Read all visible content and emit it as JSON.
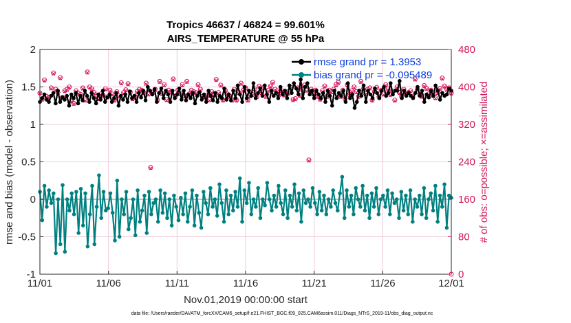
{
  "chart_data": {
    "type": "line",
    "title": "Tropics 46637 / 46824 = 99.601%",
    "subtitle": "AIRS_TEMPERATURE @ 55 hPa",
    "xlabel": "Nov.01,2019 00:00:00 start",
    "ylabel": "rmse and bias (model - observation)",
    "ylabel_right": "# of obs: o=possible; ×=assimilated",
    "footer": "data file: /Users/raeder/DAI/ATM_forcXX/CAM6_setup/f.e21.FHIST_BGC.f09_025.CAM6assim.011/Diags_NTrS_2019-11/obs_diag_output.nc",
    "x_ticks": [
      "11/01",
      "11/06",
      "11/11",
      "11/16",
      "11/21",
      "11/26",
      "12/01"
    ],
    "x_range_days": [
      0,
      30
    ],
    "ylim": [
      -1,
      2
    ],
    "y_ticks": [
      "-1",
      "-0.5",
      "0",
      "0.5",
      "1",
      "1.5",
      "2"
    ],
    "y2lim": [
      0,
      480
    ],
    "y2_ticks": [
      "0",
      "80",
      "160",
      "240",
      "320",
      "400",
      "480"
    ],
    "colors": {
      "rmse": "#000000",
      "bias": "#008080",
      "obs": "#d4145a",
      "zero_line": "#c0c0c0",
      "grid": "#f0c8d8",
      "legend_text": "#0a3ee0"
    },
    "series": [
      {
        "name": "rmse grand pr = 1.3953",
        "values": [
          1.3,
          1.35,
          1.4,
          1.33,
          1.3,
          1.38,
          1.42,
          1.28,
          1.45,
          1.3,
          1.36,
          1.33,
          1.38,
          1.25,
          1.4,
          1.35,
          1.42,
          1.28,
          1.38,
          1.32,
          1.45,
          1.38,
          1.3,
          1.42,
          1.35,
          1.28,
          1.4,
          1.33,
          1.45,
          1.3,
          1.36,
          1.4,
          1.3,
          1.35,
          1.42,
          1.25,
          1.38,
          1.33,
          1.4,
          1.3,
          1.44,
          1.35,
          1.38,
          1.3,
          1.42,
          1.36,
          1.45,
          1.32,
          1.5,
          1.45,
          1.4,
          1.47,
          1.3,
          1.42,
          1.48,
          1.35,
          1.45,
          1.4,
          1.3,
          1.45,
          1.35,
          1.4,
          1.48,
          1.33,
          1.45,
          1.32,
          1.4,
          1.35,
          1.42,
          1.28,
          1.38,
          1.43,
          1.33,
          1.4,
          1.3,
          1.45,
          1.38,
          1.32,
          1.42,
          1.3,
          1.38,
          1.35,
          1.48,
          1.33,
          1.4,
          1.32,
          1.45,
          1.35,
          1.52,
          1.4,
          1.3,
          1.5,
          1.35,
          1.45,
          1.38,
          1.55,
          1.35,
          1.42,
          1.48,
          1.38,
          1.52,
          1.4,
          1.3,
          1.45,
          1.38,
          1.42,
          1.35,
          1.5,
          1.4,
          1.45,
          1.35,
          1.52,
          1.42,
          1.55,
          1.48,
          1.4,
          1.6,
          1.35,
          1.5,
          1.55,
          1.4,
          1.45,
          1.35,
          1.45,
          1.4,
          1.35,
          1.42,
          1.3,
          1.45,
          1.38,
          1.25,
          1.45,
          1.35,
          1.42,
          1.38,
          1.45,
          1.3,
          1.55,
          1.35,
          1.4,
          1.22,
          1.3,
          1.45,
          1.38,
          1.52,
          1.3,
          1.45,
          1.4,
          1.35,
          1.48,
          1.42,
          1.35,
          1.45,
          1.5,
          1.38,
          1.42,
          1.55,
          1.4,
          1.45,
          1.45,
          1.58,
          1.35,
          1.45,
          1.38,
          1.42,
          1.38,
          1.35,
          1.42,
          1.5,
          1.38,
          1.45,
          1.3,
          1.4,
          1.36,
          1.45,
          1.38,
          1.52,
          1.45,
          1.33,
          1.42,
          1.38,
          1.4,
          1.48,
          1.45
        ]
      },
      {
        "name": "bias grand pr = -0.095489",
        "values": [
          0.1,
          -0.28,
          0.18,
          -0.1,
          0.12,
          -0.05,
          0.08,
          -0.72,
          0.0,
          -0.6,
          0.19,
          -0.7,
          0.0,
          -0.15,
          0.08,
          -0.2,
          0.1,
          -0.45,
          0.14,
          -0.35,
          0.08,
          -0.63,
          -0.2,
          0.18,
          -0.6,
          -0.1,
          0.32,
          -0.25,
          0.1,
          -0.15,
          -0.12,
          0.08,
          -0.18,
          -0.55,
          0.25,
          -0.5,
          0.0,
          -0.2,
          0.1,
          -0.4,
          -0.25,
          0.0,
          -0.48,
          0.12,
          -0.3,
          -0.15,
          0.05,
          -0.45,
          0.1,
          -0.2,
          -0.05,
          0.0,
          -0.3,
          0.12,
          -0.18,
          0.08,
          -0.25,
          0.0,
          -0.35,
          0.05,
          -0.1,
          -0.28,
          0.02,
          -0.2,
          0.08,
          -0.3,
          -0.1,
          0.12,
          -0.35,
          0.05,
          -0.18,
          -0.38,
          0.1,
          -0.05,
          -0.2,
          0.15,
          -0.1,
          0.0,
          -0.22,
          0.2,
          -0.05,
          -0.3,
          0.12,
          -0.2,
          0.05,
          -0.15,
          0.1,
          -0.1,
          0.28,
          -0.3,
          0.12,
          -0.05,
          0.22,
          -0.2,
          0.0,
          -0.1,
          0.15,
          -0.25,
          0.0,
          -0.08,
          0.22,
          0.0,
          -0.15,
          0.05,
          -0.1,
          0.18,
          -0.05,
          -0.2,
          0.12,
          -0.25,
          0.05,
          -0.1,
          0.2,
          -0.15,
          0.08,
          -0.3,
          0.12,
          -0.05,
          0.0,
          -0.1,
          0.15,
          -0.05,
          -0.2,
          0.1,
          -0.15,
          0.05,
          -0.2,
          0.0,
          -0.1,
          0.12,
          -0.05,
          -0.15,
          0.08,
          0.3,
          -0.25,
          0.12,
          -0.1,
          0.05,
          -0.2,
          0.15,
          0.0,
          -0.1,
          0.18,
          -0.15,
          0.05,
          -0.25,
          0.08,
          -0.1,
          0.15,
          -0.2,
          0.0,
          0.05,
          -0.1,
          0.12,
          -0.2,
          0.08,
          -0.05,
          0.0,
          -0.25,
          0.1,
          -0.15,
          0.05,
          -0.2,
          0.12,
          -0.3,
          0.0,
          -0.1,
          0.05,
          -0.2,
          0.15,
          -0.25,
          0.0,
          0.08,
          -0.15,
          0.18,
          -0.3,
          0.05,
          -0.1,
          0.2,
          -0.38,
          0.05,
          0.02
        ]
      }
    ],
    "obs_possible": [
      387,
      374,
      415,
      380,
      378,
      398,
      430,
      395,
      388,
      420,
      378,
      392,
      395,
      400,
      370,
      365,
      392,
      387,
      384,
      398,
      372,
      432,
      400,
      396,
      388,
      380,
      375,
      385,
      382,
      396,
      379,
      393,
      385,
      372,
      390,
      381,
      409,
      388,
      394,
      407,
      389,
      375,
      380,
      390,
      395,
      393,
      388,
      408,
      385,
      228,
      389,
      395,
      372,
      412,
      386,
      405,
      373,
      393,
      389,
      417,
      380,
      393,
      386,
      405,
      381,
      412,
      385,
      393,
      390,
      388,
      405,
      395,
      380,
      379,
      383,
      373,
      390,
      384,
      416,
      388,
      404,
      372,
      393,
      385,
      380,
      372,
      395,
      372,
      388,
      408,
      393,
      398,
      372,
      381,
      384,
      396,
      380,
      402,
      388,
      399,
      380,
      393,
      402,
      410,
      395,
      392,
      384,
      392,
      383,
      390,
      387,
      399,
      373,
      375,
      398,
      382,
      395,
      404,
      393,
      244,
      395,
      385,
      393,
      380,
      374,
      392,
      402,
      380,
      393,
      390,
      395,
      405,
      410,
      380,
      393,
      375,
      405,
      384,
      392,
      400,
      390,
      380,
      412,
      395,
      386,
      395,
      398,
      372,
      390,
      399,
      379,
      393,
      385,
      405,
      396,
      384,
      391,
      372,
      400,
      388,
      380,
      395,
      385,
      388,
      392,
      380,
      417,
      395,
      384,
      380,
      403,
      397,
      385,
      393,
      382,
      377,
      388,
      397,
      419,
      402,
      395,
      398,
      387
    ],
    "obs_assimilated": [
      386,
      372,
      413,
      378,
      376,
      396,
      428,
      393,
      386,
      418,
      376,
      390,
      393,
      398,
      368,
      363,
      390,
      385,
      382,
      396,
      370,
      430,
      398,
      394,
      386,
      378,
      373,
      383,
      380,
      394,
      377,
      391,
      383,
      370,
      388,
      379,
      407,
      386,
      392,
      405,
      387,
      373,
      378,
      388,
      393,
      391,
      386,
      406,
      383,
      226,
      387,
      393,
      370,
      410,
      384,
      403,
      371,
      391,
      387,
      415,
      378,
      391,
      384,
      403,
      379,
      410,
      383,
      391,
      388,
      386,
      403,
      393,
      378,
      377,
      381,
      371,
      388,
      382,
      414,
      386,
      402,
      370,
      391,
      383,
      378,
      370,
      393,
      370,
      386,
      406,
      391,
      396,
      370,
      379,
      382,
      394,
      378,
      400,
      386,
      397,
      378,
      391,
      400,
      408,
      393,
      390,
      382,
      390,
      381,
      388,
      385,
      397,
      371,
      373,
      396,
      380,
      393,
      402,
      391,
      242,
      393,
      383,
      391,
      378,
      372,
      390,
      400,
      378,
      391,
      388,
      393,
      403,
      408,
      378,
      391,
      373,
      403,
      382,
      390,
      398,
      388,
      378,
      410,
      393,
      384,
      393,
      396,
      370,
      388,
      397,
      377,
      391,
      383,
      403,
      394,
      382,
      389,
      370,
      398,
      386,
      378,
      393,
      383,
      386,
      390,
      378,
      415,
      393,
      382,
      378,
      401,
      395,
      383,
      391,
      380,
      375,
      386,
      395,
      417,
      400,
      393,
      396,
      385
    ]
  }
}
